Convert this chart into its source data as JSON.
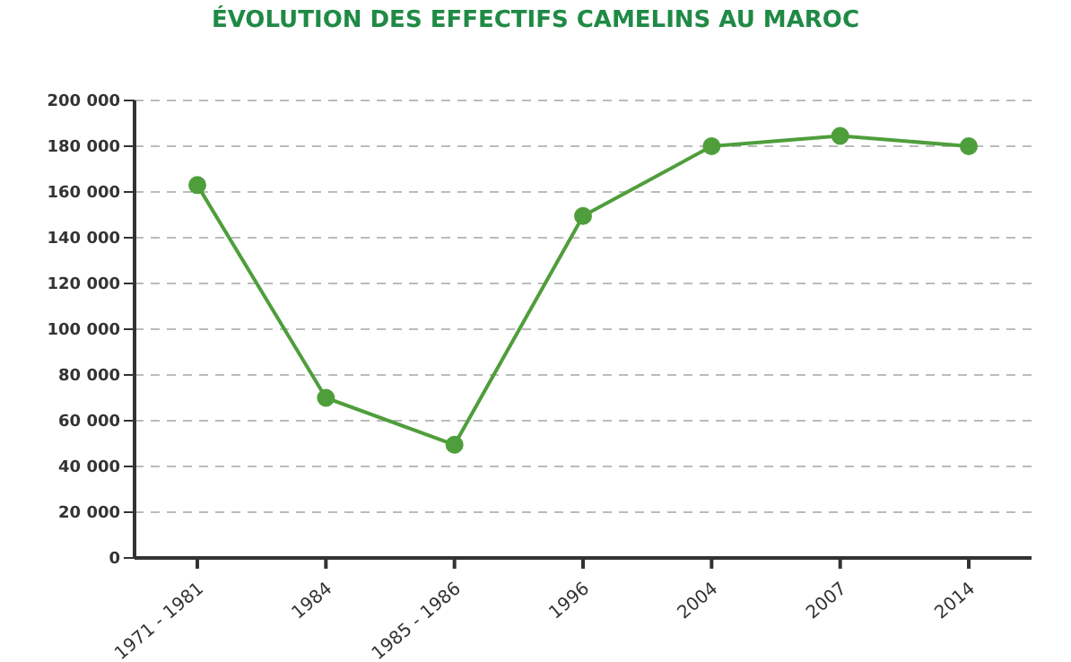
{
  "chart_data": {
    "type": "line",
    "title": "ÉVOLUTION DES EFFECTIFS CAMELINS AU MAROC",
    "categories": [
      "1971 - 1981",
      "1984",
      "1985 - 1986",
      "1996",
      "2004",
      "2007",
      "2014"
    ],
    "series": [
      {
        "color": "#4f9e3c",
        "values": [
          163000,
          70000,
          49500,
          149500,
          180000,
          184500,
          180000
        ]
      }
    ],
    "ylim": [
      0,
      200000
    ],
    "yticks": [
      {
        "value": 0,
        "label": "0"
      },
      {
        "value": 20000,
        "label": "20 000"
      },
      {
        "value": 40000,
        "label": "40 000"
      },
      {
        "value": 60000,
        "label": "60 000"
      },
      {
        "value": 80000,
        "label": "80 000"
      },
      {
        "value": 100000,
        "label": "100 000"
      },
      {
        "value": 120000,
        "label": "120 000"
      },
      {
        "value": 140000,
        "label": "140 000"
      },
      {
        "value": 160000,
        "label": "160 000"
      },
      {
        "value": 180000,
        "label": "180 000"
      },
      {
        "value": 200000,
        "label": "200 000"
      }
    ],
    "grid": "y",
    "marker": "circle",
    "line_style": "solid"
  }
}
